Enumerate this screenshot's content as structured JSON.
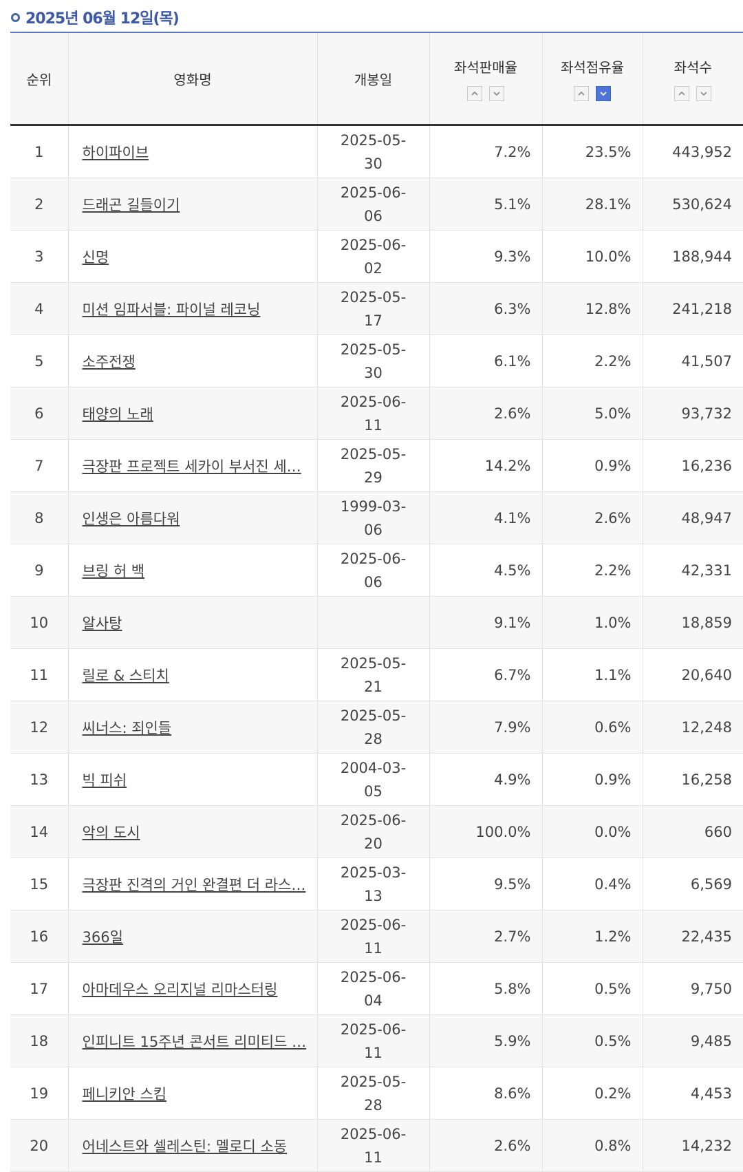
{
  "header": {
    "date": "2025년 06월 12일(목)"
  },
  "columns": {
    "rank": "순위",
    "title": "영화명",
    "release": "개봉일",
    "sales_rate": "좌석판매율",
    "share_rate": "좌석점유율",
    "seats": "좌석수"
  },
  "active_sort": {
    "column": "좌석점유율",
    "direction": "descending"
  },
  "rows": [
    {
      "rank": "1",
      "title": "하이파이브",
      "release": "2025-05-30",
      "sales": "7.2%",
      "share": "23.5%",
      "seats": "443,952"
    },
    {
      "rank": "2",
      "title": "드래곤 길들이기",
      "release": "2025-06-06",
      "sales": "5.1%",
      "share": "28.1%",
      "seats": "530,624"
    },
    {
      "rank": "3",
      "title": "신명",
      "release": "2025-06-02",
      "sales": "9.3%",
      "share": "10.0%",
      "seats": "188,944"
    },
    {
      "rank": "4",
      "title": "미션 임파서블: 파이널 레코닝",
      "release": "2025-05-17",
      "sales": "6.3%",
      "share": "12.8%",
      "seats": "241,218"
    },
    {
      "rank": "5",
      "title": "소주전쟁",
      "release": "2025-05-30",
      "sales": "6.1%",
      "share": "2.2%",
      "seats": "41,507"
    },
    {
      "rank": "6",
      "title": "태양의 노래",
      "release": "2025-06-11",
      "sales": "2.6%",
      "share": "5.0%",
      "seats": "93,732"
    },
    {
      "rank": "7",
      "title": "극장판 프로젝트 세카이 부서진 세…",
      "release": "2025-05-29",
      "sales": "14.2%",
      "share": "0.9%",
      "seats": "16,236"
    },
    {
      "rank": "8",
      "title": "인생은 아름다워",
      "release": "1999-03-06",
      "sales": "4.1%",
      "share": "2.6%",
      "seats": "48,947"
    },
    {
      "rank": "9",
      "title": "브링 허 백",
      "release": "2025-06-06",
      "sales": "4.5%",
      "share": "2.2%",
      "seats": "42,331"
    },
    {
      "rank": "10",
      "title": "알사탕",
      "release": "",
      "sales": "9.1%",
      "share": "1.0%",
      "seats": "18,859"
    },
    {
      "rank": "11",
      "title": "릴로 & 스티치",
      "release": "2025-05-21",
      "sales": "6.7%",
      "share": "1.1%",
      "seats": "20,640"
    },
    {
      "rank": "12",
      "title": "씨너스: 죄인들",
      "release": "2025-05-28",
      "sales": "7.9%",
      "share": "0.6%",
      "seats": "12,248"
    },
    {
      "rank": "13",
      "title": "빅 피쉬",
      "release": "2004-03-05",
      "sales": "4.9%",
      "share": "0.9%",
      "seats": "16,258"
    },
    {
      "rank": "14",
      "title": "악의 도시",
      "release": "2025-06-20",
      "sales": "100.0%",
      "share": "0.0%",
      "seats": "660"
    },
    {
      "rank": "15",
      "title": "극장판 진격의 거인 완결편 더 라스…",
      "release": "2025-03-13",
      "sales": "9.5%",
      "share": "0.4%",
      "seats": "6,569"
    },
    {
      "rank": "16",
      "title": "366일",
      "release": "2025-06-11",
      "sales": "2.7%",
      "share": "1.2%",
      "seats": "22,435"
    },
    {
      "rank": "17",
      "title": "아마데우스 오리지널 리마스터링",
      "release": "2025-06-04",
      "sales": "5.8%",
      "share": "0.5%",
      "seats": "9,750"
    },
    {
      "rank": "18",
      "title": "인피니트 15주년 콘서트 리미티드 …",
      "release": "2025-06-11",
      "sales": "5.9%",
      "share": "0.5%",
      "seats": "9,485"
    },
    {
      "rank": "19",
      "title": "페니키안 스킴",
      "release": "2025-05-28",
      "sales": "8.6%",
      "share": "0.2%",
      "seats": "4,453"
    },
    {
      "rank": "20",
      "title": "어네스트와 셀레스틴: 멜로디 소동",
      "release": "2025-06-11",
      "sales": "2.6%",
      "share": "0.8%",
      "seats": "14,232"
    }
  ]
}
